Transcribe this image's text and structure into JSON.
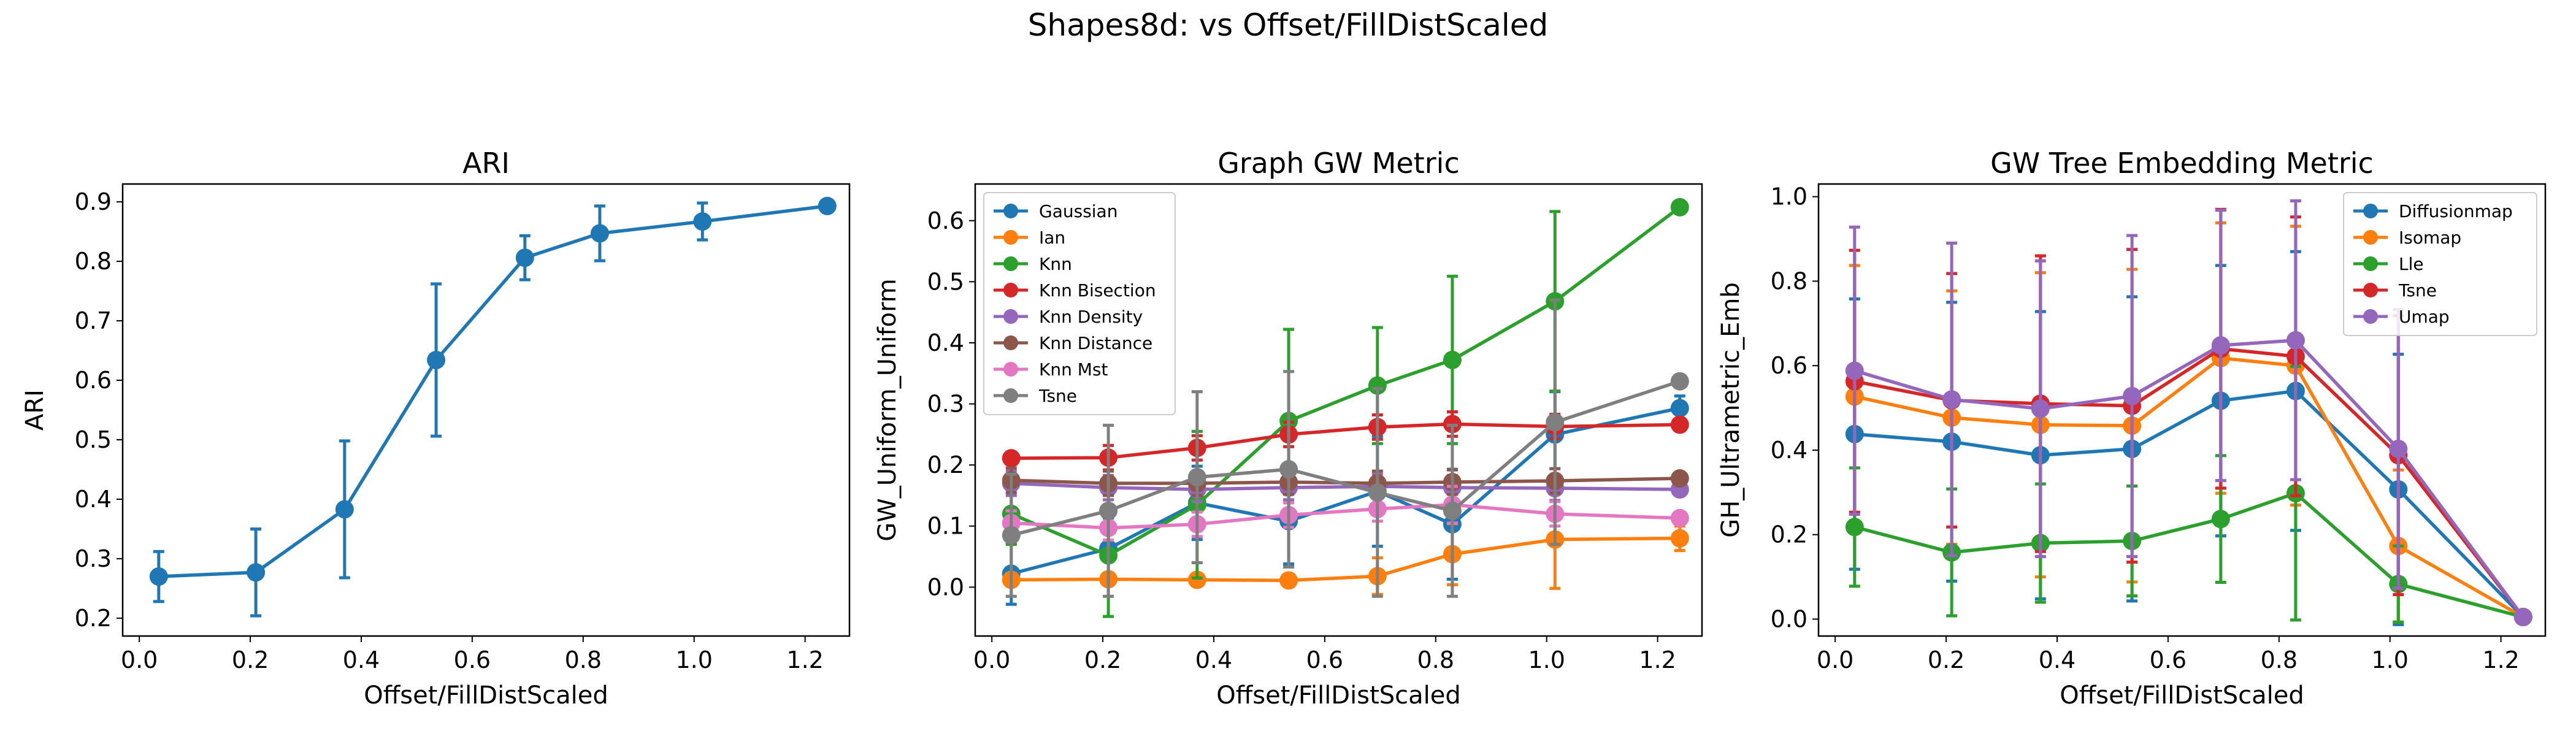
{
  "suptitle": "Shapes8d: vs Offset/FillDistScaled",
  "chart_data": [
    {
      "type": "line",
      "title": "ARI",
      "xlabel": "Offset/FillDistScaled",
      "ylabel": "ARI",
      "xlim": [
        -0.03,
        1.28
      ],
      "ylim": [
        0.17,
        0.93
      ],
      "xticks": [
        0.0,
        0.2,
        0.4,
        0.6,
        0.8,
        1.0,
        1.2
      ],
      "xtick_labels": [
        "0.0",
        "0.2",
        "0.4",
        "0.6",
        "0.8",
        "1.0",
        "1.2"
      ],
      "yticks": [
        0.2,
        0.3,
        0.4,
        0.5,
        0.6,
        0.7,
        0.8,
        0.9
      ],
      "ytick_labels": [
        "0.2",
        "0.3",
        "0.4",
        "0.5",
        "0.6",
        "0.7",
        "0.8",
        "0.9"
      ],
      "legend": null,
      "x": [
        0.035,
        0.21,
        0.37,
        0.535,
        0.695,
        0.83,
        1.015,
        1.24
      ],
      "series": [
        {
          "color": "#1f77b4",
          "values": [
            0.27,
            0.277,
            0.383,
            0.634,
            0.806,
            0.847,
            0.867,
            0.893
          ],
          "err": [
            0.042,
            0.073,
            0.115,
            0.128,
            0.037,
            0.046,
            0.031,
            0.006
          ]
        }
      ]
    },
    {
      "type": "line",
      "title": "Graph GW Metric",
      "xlabel": "Offset/FillDistScaled",
      "ylabel": "GW_Uniform_Uniform",
      "xlim": [
        -0.03,
        1.28
      ],
      "ylim": [
        -0.08,
        0.66
      ],
      "xticks": [
        0.0,
        0.2,
        0.4,
        0.6,
        0.8,
        1.0,
        1.2
      ],
      "xtick_labels": [
        "0.0",
        "0.2",
        "0.4",
        "0.6",
        "0.8",
        "1.0",
        "1.2"
      ],
      "yticks": [
        0.0,
        0.1,
        0.2,
        0.3,
        0.4,
        0.5,
        0.6
      ],
      "ytick_labels": [
        "0.0",
        "0.1",
        "0.2",
        "0.3",
        "0.4",
        "0.5",
        "0.6"
      ],
      "legend": "top-left",
      "x": [
        0.035,
        0.21,
        0.37,
        0.535,
        0.695,
        0.83,
        1.015,
        1.24
      ],
      "series": [
        {
          "name": "Gaussian",
          "color": "#1f77b4",
          "values": [
            0.022,
            0.063,
            0.138,
            0.108,
            0.157,
            0.103,
            0.25,
            0.293
          ],
          "err": [
            0.05,
            0.05,
            0.06,
            0.07,
            0.09,
            0.09,
            0.07,
            0.02
          ]
        },
        {
          "name": "Ian",
          "color": "#ff7f0e",
          "values": [
            0.012,
            0.013,
            0.012,
            0.011,
            0.018,
            0.054,
            0.078,
            0.08
          ],
          "err": [
            0.01,
            0.01,
            0.01,
            0.01,
            0.03,
            0.05,
            0.08,
            0.02
          ]
        },
        {
          "name": "Knn",
          "color": "#2ca02c",
          "values": [
            0.12,
            0.052,
            0.135,
            0.272,
            0.33,
            0.372,
            0.468,
            0.622
          ],
          "err": [
            0.05,
            0.1,
            0.12,
            0.15,
            0.095,
            0.137,
            0.147,
            0.008
          ]
        },
        {
          "name": "Knn Bisection",
          "color": "#d62728",
          "values": [
            0.211,
            0.212,
            0.228,
            0.25,
            0.262,
            0.267,
            0.263,
            0.266
          ],
          "err": [
            0.01,
            0.02,
            0.02,
            0.02,
            0.02,
            0.02,
            0.02,
            0.01
          ]
        },
        {
          "name": "Knn Density",
          "color": "#9467bd",
          "values": [
            0.17,
            0.163,
            0.16,
            0.163,
            0.165,
            0.163,
            0.162,
            0.16
          ],
          "err": [
            0.02,
            0.02,
            0.02,
            0.02,
            0.02,
            0.02,
            0.02,
            0.01
          ]
        },
        {
          "name": "Knn Distance",
          "color": "#8c564b",
          "values": [
            0.175,
            0.17,
            0.17,
            0.172,
            0.17,
            0.172,
            0.174,
            0.178
          ],
          "err": [
            0.02,
            0.02,
            0.02,
            0.02,
            0.02,
            0.02,
            0.02,
            0.01
          ]
        },
        {
          "name": "Knn Mst",
          "color": "#e377c2",
          "values": [
            0.105,
            0.097,
            0.103,
            0.118,
            0.128,
            0.135,
            0.12,
            0.113
          ],
          "err": [
            0.02,
            0.02,
            0.02,
            0.02,
            0.02,
            0.03,
            0.02,
            0.01
          ]
        },
        {
          "name": "Tsne",
          "color": "#7f7f7f",
          "values": [
            0.085,
            0.125,
            0.18,
            0.193,
            0.155,
            0.125,
            0.27,
            0.337
          ],
          "err": [
            0.1,
            0.14,
            0.14,
            0.16,
            0.17,
            0.14,
            0.2,
            0.01
          ]
        }
      ]
    },
    {
      "type": "line",
      "title": "GW Tree Embedding Metric",
      "xlabel": "Offset/FillDistScaled",
      "ylabel": "GH_Ultrametric_Emb",
      "xlim": [
        -0.03,
        1.28
      ],
      "ylim": [
        -0.04,
        1.03
      ],
      "xticks": [
        0.0,
        0.2,
        0.4,
        0.6,
        0.8,
        1.0,
        1.2
      ],
      "xtick_labels": [
        "0.0",
        "0.2",
        "0.4",
        "0.6",
        "0.8",
        "1.0",
        "1.2"
      ],
      "yticks": [
        0.0,
        0.2,
        0.4,
        0.6,
        0.8,
        1.0
      ],
      "ytick_labels": [
        "0.0",
        "0.2",
        "0.4",
        "0.6",
        "0.8",
        "1.0"
      ],
      "legend": "top-right",
      "x": [
        0.035,
        0.21,
        0.37,
        0.535,
        0.695,
        0.83,
        1.015,
        1.24
      ],
      "series": [
        {
          "name": "Diffusionmap",
          "color": "#1f77b4",
          "values": [
            0.438,
            0.42,
            0.388,
            0.403,
            0.517,
            0.54,
            0.307,
            0.005
          ],
          "err": [
            0.32,
            0.33,
            0.34,
            0.36,
            0.32,
            0.33,
            0.32,
            0.005
          ]
        },
        {
          "name": "Isomap",
          "color": "#ff7f0e",
          "values": [
            0.527,
            0.477,
            0.46,
            0.458,
            0.618,
            0.6,
            0.173,
            0.005
          ],
          "err": [
            0.31,
            0.3,
            0.36,
            0.37,
            0.32,
            0.33,
            0.18,
            0.005
          ]
        },
        {
          "name": "Lle",
          "color": "#2ca02c",
          "values": [
            0.218,
            0.158,
            0.18,
            0.185,
            0.237,
            0.298,
            0.083,
            0.005
          ],
          "err": [
            0.14,
            0.15,
            0.14,
            0.13,
            0.15,
            0.3,
            0.09,
            0.005
          ]
        },
        {
          "name": "Tsne",
          "color": "#d62728",
          "values": [
            0.563,
            0.518,
            0.51,
            0.505,
            0.64,
            0.622,
            0.388,
            0.005
          ],
          "err": [
            0.31,
            0.3,
            0.35,
            0.37,
            0.33,
            0.33,
            0.33,
            0.005
          ]
        },
        {
          "name": "Umap",
          "color": "#9467bd",
          "values": [
            0.588,
            0.52,
            0.498,
            0.528,
            0.648,
            0.66,
            0.403,
            0.005
          ],
          "err": [
            0.34,
            0.37,
            0.35,
            0.38,
            0.32,
            0.33,
            0.33,
            0.005
          ]
        }
      ]
    }
  ]
}
